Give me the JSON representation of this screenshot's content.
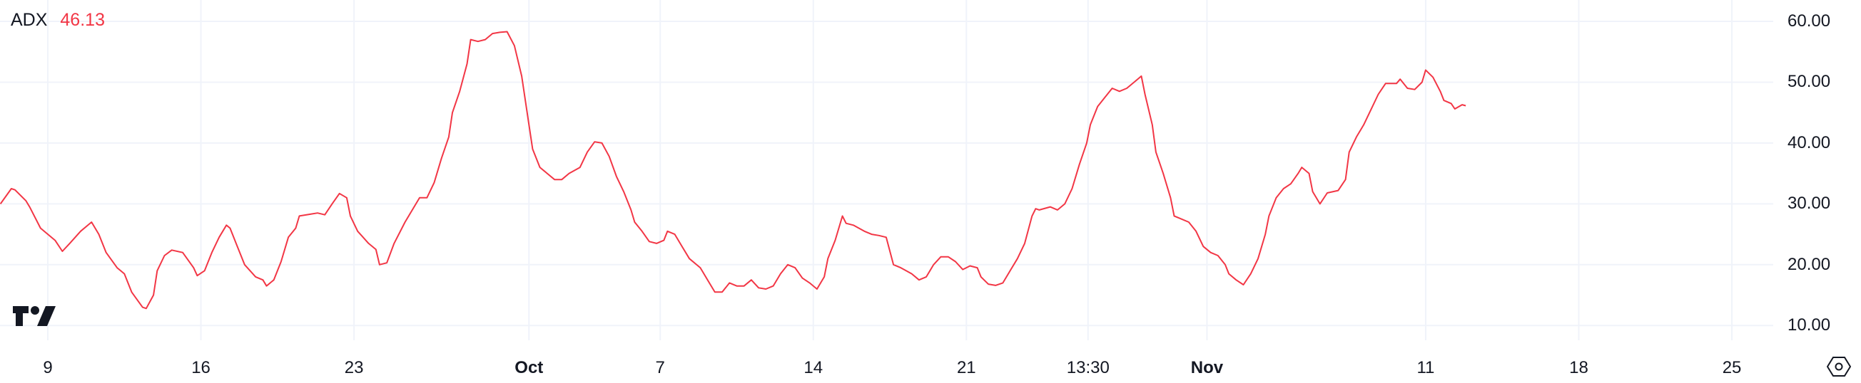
{
  "legend": {
    "label": "ADX",
    "value": "46.13"
  },
  "colors": {
    "line": "#f23645",
    "grid": "#f0f3fa",
    "text": "#131722"
  },
  "icons": {
    "logo": "tradingview-logo",
    "settings": "settings-hexagon-icon"
  },
  "chart_data": {
    "type": "line",
    "title": "",
    "xlabel": "",
    "ylabel": "",
    "ylim": [
      8,
      62
    ],
    "grid": true,
    "y_axis_position": "right",
    "y_ticks": [
      "60.00",
      "50.00",
      "40.00",
      "30.00",
      "20.00",
      "10.00"
    ],
    "x_ticks": [
      {
        "label": "9",
        "date": "2024-09-09T00:00",
        "bold": false
      },
      {
        "label": "16",
        "date": "2024-09-16T00:00",
        "bold": false
      },
      {
        "label": "23",
        "date": "2024-09-23T00:00",
        "bold": false
      },
      {
        "label": "Oct",
        "date": "2024-10-01T00:00",
        "bold": true
      },
      {
        "label": "7",
        "date": "2024-10-07T00:00",
        "bold": false
      },
      {
        "label": "14",
        "date": "2024-10-14T00:00",
        "bold": false
      },
      {
        "label": "21",
        "date": "2024-10-21T00:00",
        "bold": false
      },
      {
        "label": "13:30",
        "date": "2024-10-26T13:30",
        "bold": false
      },
      {
        "label": "Nov",
        "date": "2024-11-01T00:00",
        "bold": true
      },
      {
        "label": "11",
        "date": "2024-11-11T00:00",
        "bold": false
      },
      {
        "label": "18",
        "date": "2024-11-18T00:00",
        "bold": false
      },
      {
        "label": "25",
        "date": "2024-11-25T00:00",
        "bold": false
      }
    ],
    "series": [
      {
        "points": [
          [
            "2024-09-06T20:00",
            30.0
          ],
          [
            "2024-09-07T08:00",
            32.5
          ],
          [
            "2024-09-07T12:00",
            32.3
          ],
          [
            "2024-09-08T00:00",
            30.5
          ],
          [
            "2024-09-08T04:00",
            29.5
          ],
          [
            "2024-09-08T16:00",
            26.0
          ],
          [
            "2024-09-09T08:00",
            24.0
          ],
          [
            "2024-09-09T16:00",
            22.2
          ],
          [
            "2024-09-10T00:00",
            23.5
          ],
          [
            "2024-09-10T12:00",
            25.5
          ],
          [
            "2024-09-11T00:00",
            27.0
          ],
          [
            "2024-09-11T08:00",
            25.0
          ],
          [
            "2024-09-11T16:00",
            22.0
          ],
          [
            "2024-09-12T04:00",
            19.5
          ],
          [
            "2024-09-12T12:00",
            18.5
          ],
          [
            "2024-09-12T20:00",
            15.5
          ],
          [
            "2024-09-13T08:00",
            13.0
          ],
          [
            "2024-09-13T12:00",
            12.8
          ],
          [
            "2024-09-13T20:00",
            15.0
          ],
          [
            "2024-09-14T00:00",
            19.0
          ],
          [
            "2024-09-14T08:00",
            21.5
          ],
          [
            "2024-09-14T16:00",
            22.4
          ],
          [
            "2024-09-15T04:00",
            22.0
          ],
          [
            "2024-09-15T16:00",
            19.5
          ],
          [
            "2024-09-15T20:00",
            18.2
          ],
          [
            "2024-09-16T04:00",
            19.0
          ],
          [
            "2024-09-16T12:00",
            22.0
          ],
          [
            "2024-09-16T20:00",
            24.5
          ],
          [
            "2024-09-17T04:00",
            26.5
          ],
          [
            "2024-09-17T08:00",
            26.0
          ],
          [
            "2024-09-17T16:00",
            23.0
          ],
          [
            "2024-09-18T00:00",
            20.0
          ],
          [
            "2024-09-18T12:00",
            18.0
          ],
          [
            "2024-09-18T20:00",
            17.5
          ],
          [
            "2024-09-19T00:00",
            16.5
          ],
          [
            "2024-09-19T08:00",
            17.5
          ],
          [
            "2024-09-19T16:00",
            20.5
          ],
          [
            "2024-09-20T00:00",
            24.5
          ],
          [
            "2024-09-20T08:00",
            26.0
          ],
          [
            "2024-09-20T12:00",
            28.0
          ],
          [
            "2024-09-21T00:00",
            28.3
          ],
          [
            "2024-09-21T08:00",
            28.5
          ],
          [
            "2024-09-21T16:00",
            28.2
          ],
          [
            "2024-09-22T00:00",
            30.0
          ],
          [
            "2024-09-22T08:00",
            31.7
          ],
          [
            "2024-09-22T16:00",
            31.0
          ],
          [
            "2024-09-22T20:00",
            28.0
          ],
          [
            "2024-09-23T04:00",
            25.5
          ],
          [
            "2024-09-23T16:00",
            23.5
          ],
          [
            "2024-09-24T00:00",
            22.5
          ],
          [
            "2024-09-24T04:00",
            20.0
          ],
          [
            "2024-09-24T12:00",
            20.3
          ],
          [
            "2024-09-24T20:00",
            23.5
          ],
          [
            "2024-09-25T08:00",
            27.0
          ],
          [
            "2024-09-25T16:00",
            29.0
          ],
          [
            "2024-09-26T00:00",
            31.0
          ],
          [
            "2024-09-26T08:00",
            31.0
          ],
          [
            "2024-09-26T16:00",
            33.5
          ],
          [
            "2024-09-27T00:00",
            37.5
          ],
          [
            "2024-09-27T08:00",
            41.0
          ],
          [
            "2024-09-27T12:00",
            45.0
          ],
          [
            "2024-09-27T20:00",
            48.5
          ],
          [
            "2024-09-28T04:00",
            53.0
          ],
          [
            "2024-09-28T08:00",
            57.0
          ],
          [
            "2024-09-28T16:00",
            56.7
          ],
          [
            "2024-09-29T00:00",
            57.0
          ],
          [
            "2024-09-29T08:00",
            58.0
          ],
          [
            "2024-09-29T16:00",
            58.2
          ],
          [
            "2024-09-30T00:00",
            58.3
          ],
          [
            "2024-09-30T08:00",
            56.0
          ],
          [
            "2024-09-30T16:00",
            51.0
          ],
          [
            "2024-10-01T00:00",
            43.0
          ],
          [
            "2024-10-01T04:00",
            39.0
          ],
          [
            "2024-10-01T12:00",
            36.0
          ],
          [
            "2024-10-01T20:00",
            35.0
          ],
          [
            "2024-10-02T04:00",
            34.0
          ],
          [
            "2024-10-02T12:00",
            34.0
          ],
          [
            "2024-10-02T20:00",
            35.0
          ],
          [
            "2024-10-03T08:00",
            36.0
          ],
          [
            "2024-10-03T16:00",
            38.5
          ],
          [
            "2024-10-04T00:00",
            40.2
          ],
          [
            "2024-10-04T08:00",
            40.0
          ],
          [
            "2024-10-04T16:00",
            37.8
          ],
          [
            "2024-10-05T00:00",
            34.5
          ],
          [
            "2024-10-05T08:00",
            32.0
          ],
          [
            "2024-10-05T16:00",
            29.0
          ],
          [
            "2024-10-05T20:00",
            27.0
          ],
          [
            "2024-10-06T04:00",
            25.5
          ],
          [
            "2024-10-06T12:00",
            23.8
          ],
          [
            "2024-10-06T20:00",
            23.5
          ],
          [
            "2024-10-07T04:00",
            24.0
          ],
          [
            "2024-10-07T08:00",
            25.5
          ],
          [
            "2024-10-07T16:00",
            25.0
          ],
          [
            "2024-10-08T00:00",
            23.0
          ],
          [
            "2024-10-08T08:00",
            21.0
          ],
          [
            "2024-10-08T20:00",
            19.5
          ],
          [
            "2024-10-09T04:00",
            17.5
          ],
          [
            "2024-10-09T12:00",
            15.5
          ],
          [
            "2024-10-09T20:00",
            15.5
          ],
          [
            "2024-10-10T04:00",
            17.0
          ],
          [
            "2024-10-10T12:00",
            16.5
          ],
          [
            "2024-10-10T20:00",
            16.5
          ],
          [
            "2024-10-11T04:00",
            17.5
          ],
          [
            "2024-10-11T12:00",
            16.2
          ],
          [
            "2024-10-11T20:00",
            16.0
          ],
          [
            "2024-10-12T04:00",
            16.5
          ],
          [
            "2024-10-12T12:00",
            18.5
          ],
          [
            "2024-10-12T20:00",
            20.0
          ],
          [
            "2024-10-13T04:00",
            19.5
          ],
          [
            "2024-10-13T12:00",
            17.8
          ],
          [
            "2024-10-13T20:00",
            17.0
          ],
          [
            "2024-10-14T04:00",
            16.0
          ],
          [
            "2024-10-14T12:00",
            18.0
          ],
          [
            "2024-10-14T16:00",
            21.0
          ],
          [
            "2024-10-15T00:00",
            24.0
          ],
          [
            "2024-10-15T08:00",
            28.0
          ],
          [
            "2024-10-15T12:00",
            26.8
          ],
          [
            "2024-10-15T20:00",
            26.5
          ],
          [
            "2024-10-16T08:00",
            25.5
          ],
          [
            "2024-10-16T16:00",
            25.0
          ],
          [
            "2024-10-17T00:00",
            24.8
          ],
          [
            "2024-10-17T08:00",
            24.5
          ],
          [
            "2024-10-17T16:00",
            20.0
          ],
          [
            "2024-10-18T00:00",
            19.5
          ],
          [
            "2024-10-18T12:00",
            18.5
          ],
          [
            "2024-10-18T20:00",
            17.5
          ],
          [
            "2024-10-19T04:00",
            18.0
          ],
          [
            "2024-10-19T12:00",
            20.0
          ],
          [
            "2024-10-19T20:00",
            21.3
          ],
          [
            "2024-10-20T04:00",
            21.3
          ],
          [
            "2024-10-20T12:00",
            20.5
          ],
          [
            "2024-10-20T20:00",
            19.2
          ],
          [
            "2024-10-21T04:00",
            19.8
          ],
          [
            "2024-10-21T12:00",
            19.5
          ],
          [
            "2024-10-21T16:00",
            18.0
          ],
          [
            "2024-10-22T00:00",
            16.8
          ],
          [
            "2024-10-22T08:00",
            16.6
          ],
          [
            "2024-10-22T16:00",
            17.0
          ],
          [
            "2024-10-23T00:00",
            19.0
          ],
          [
            "2024-10-23T08:00",
            21.0
          ],
          [
            "2024-10-23T16:00",
            23.5
          ],
          [
            "2024-10-24T00:00",
            28.0
          ],
          [
            "2024-10-24T04:00",
            29.2
          ],
          [
            "2024-10-24T08:00",
            29.0
          ],
          [
            "2024-10-24T20:00",
            29.5
          ],
          [
            "2024-10-25T04:00",
            29.0
          ],
          [
            "2024-10-25T12:00",
            30.0
          ],
          [
            "2024-10-25T20:00",
            32.5
          ],
          [
            "2024-10-26T04:00",
            36.5
          ],
          [
            "2024-10-26T12:00",
            40.0
          ],
          [
            "2024-10-26T16:00",
            43.0
          ],
          [
            "2024-10-27T00:00",
            46.0
          ],
          [
            "2024-10-27T08:00",
            47.5
          ],
          [
            "2024-10-27T16:00",
            49.0
          ],
          [
            "2024-10-28T00:00",
            48.5
          ],
          [
            "2024-10-28T08:00",
            49.0
          ],
          [
            "2024-10-28T16:00",
            50.0
          ],
          [
            "2024-10-29T00:00",
            51.0
          ],
          [
            "2024-10-29T04:00",
            48.0
          ],
          [
            "2024-10-29T12:00",
            43.0
          ],
          [
            "2024-10-29T16:00",
            38.5
          ],
          [
            "2024-10-30T00:00",
            35.0
          ],
          [
            "2024-10-30T08:00",
            31.0
          ],
          [
            "2024-10-30T12:00",
            28.0
          ],
          [
            "2024-10-30T20:00",
            27.5
          ],
          [
            "2024-10-31T04:00",
            27.0
          ],
          [
            "2024-10-31T12:00",
            25.5
          ],
          [
            "2024-10-31T20:00",
            23.0
          ],
          [
            "2024-11-01T04:00",
            22.0
          ],
          [
            "2024-11-01T12:00",
            21.5
          ],
          [
            "2024-11-01T20:00",
            20.0
          ],
          [
            "2024-11-02T00:00",
            18.5
          ],
          [
            "2024-11-02T08:00",
            17.5
          ],
          [
            "2024-11-02T16:00",
            16.7
          ],
          [
            "2024-11-03T00:00",
            18.5
          ],
          [
            "2024-11-03T08:00",
            21.0
          ],
          [
            "2024-11-03T16:00",
            25.0
          ],
          [
            "2024-11-03T20:00",
            28.0
          ],
          [
            "2024-11-04T04:00",
            31.0
          ],
          [
            "2024-11-04T12:00",
            32.5
          ],
          [
            "2024-11-04T20:00",
            33.3
          ],
          [
            "2024-11-05T04:00",
            35.0
          ],
          [
            "2024-11-05T08:00",
            36.0
          ],
          [
            "2024-11-05T16:00",
            35.0
          ],
          [
            "2024-11-05T20:00",
            32.0
          ],
          [
            "2024-11-06T04:00",
            30.0
          ],
          [
            "2024-11-06T12:00",
            31.8
          ],
          [
            "2024-11-07T00:00",
            32.2
          ],
          [
            "2024-11-07T08:00",
            34.0
          ],
          [
            "2024-11-07T12:00",
            38.5
          ],
          [
            "2024-11-07T20:00",
            41.0
          ],
          [
            "2024-11-08T04:00",
            43.0
          ],
          [
            "2024-11-08T12:00",
            45.5
          ],
          [
            "2024-11-08T20:00",
            48.0
          ],
          [
            "2024-11-09T04:00",
            49.8
          ],
          [
            "2024-11-09T16:00",
            49.8
          ],
          [
            "2024-11-09T20:00",
            50.5
          ],
          [
            "2024-11-10T04:00",
            49.0
          ],
          [
            "2024-11-10T12:00",
            48.8
          ],
          [
            "2024-11-10T20:00",
            50.0
          ],
          [
            "2024-11-11T00:00",
            52.0
          ],
          [
            "2024-11-11T08:00",
            50.8
          ],
          [
            "2024-11-11T16:00",
            48.5
          ],
          [
            "2024-11-11T20:00",
            47.0
          ],
          [
            "2024-11-12T04:00",
            46.5
          ],
          [
            "2024-11-12T08:00",
            45.6
          ],
          [
            "2024-11-12T16:00",
            46.3
          ],
          [
            "2024-11-12T20:00",
            46.13
          ]
        ]
      }
    ]
  }
}
